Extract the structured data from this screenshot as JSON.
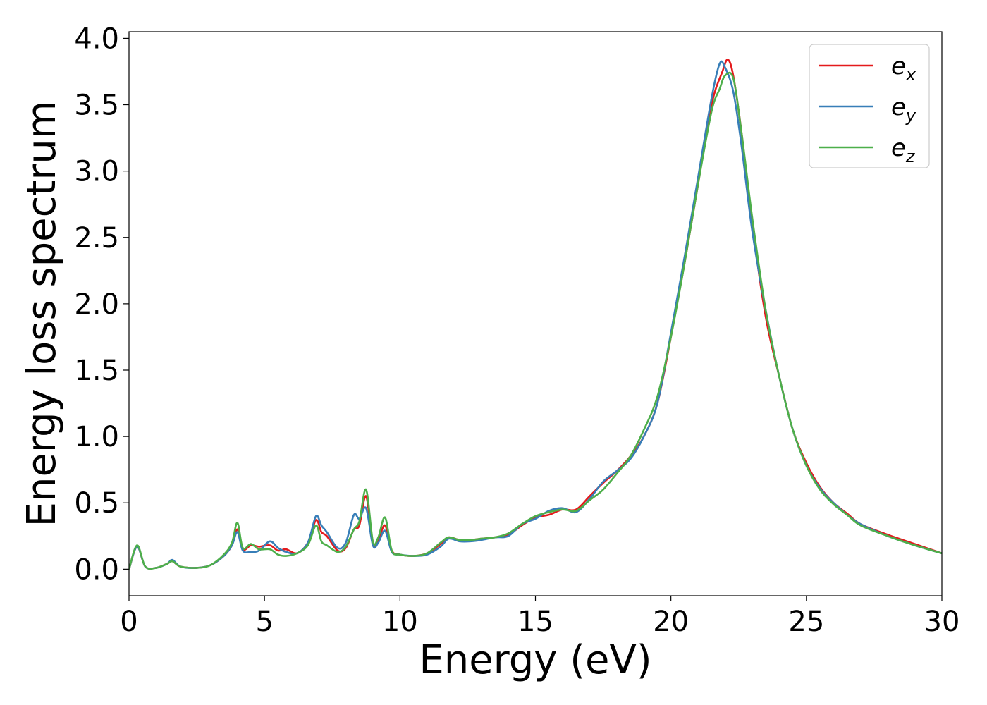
{
  "chart_data": {
    "type": "line",
    "xlabel": "Energy (eV)",
    "ylabel": "Energy loss spectrum",
    "xlim": [
      0,
      30
    ],
    "ylim": [
      -0.2,
      4.05
    ],
    "xticks": [
      0,
      5,
      10,
      15,
      20,
      25,
      30
    ],
    "xtick_labels": [
      "0",
      "5",
      "10",
      "15",
      "20",
      "25",
      "30"
    ],
    "yticks": [
      0.0,
      0.5,
      1.0,
      1.5,
      2.0,
      2.5,
      3.0,
      3.5,
      4.0
    ],
    "ytick_labels": [
      "0.0",
      "0.5",
      "1.0",
      "1.5",
      "2.0",
      "2.5",
      "3.0",
      "3.5",
      "4.0"
    ],
    "grid": false,
    "legend_position": "top-right",
    "series": [
      {
        "name": "e_x",
        "base": "e",
        "sub": "x",
        "color": "#e41a1c",
        "x": [
          0,
          0.3,
          0.6,
          1.0,
          1.4,
          1.6,
          1.9,
          2.5,
          3.0,
          3.5,
          3.8,
          4.0,
          4.2,
          4.5,
          4.8,
          5.2,
          5.5,
          5.8,
          6.2,
          6.6,
          6.9,
          7.1,
          7.3,
          7.7,
          8.0,
          8.3,
          8.5,
          8.75,
          9.0,
          9.2,
          9.45,
          9.7,
          10.0,
          10.5,
          11.0,
          11.5,
          11.8,
          12.2,
          12.6,
          13.0,
          13.5,
          14.0,
          14.5,
          15.0,
          15.5,
          16.0,
          16.5,
          17.0,
          17.5,
          18.0,
          18.5,
          19.0,
          19.5,
          20.0,
          20.5,
          21.0,
          21.5,
          21.9,
          22.1,
          22.3,
          22.6,
          23.0,
          23.5,
          24.0,
          24.5,
          25.0,
          25.5,
          26.0,
          26.5,
          27.0,
          28.0,
          29.0,
          30.0
        ],
        "y": [
          0.0,
          0.17,
          0.02,
          0.01,
          0.04,
          0.06,
          0.02,
          0.01,
          0.03,
          0.1,
          0.18,
          0.3,
          0.15,
          0.18,
          0.17,
          0.18,
          0.14,
          0.15,
          0.12,
          0.2,
          0.37,
          0.28,
          0.25,
          0.14,
          0.16,
          0.3,
          0.33,
          0.55,
          0.2,
          0.22,
          0.33,
          0.14,
          0.11,
          0.1,
          0.12,
          0.19,
          0.24,
          0.22,
          0.22,
          0.23,
          0.24,
          0.26,
          0.33,
          0.39,
          0.41,
          0.45,
          0.45,
          0.55,
          0.65,
          0.74,
          0.85,
          1.0,
          1.25,
          1.75,
          2.3,
          2.9,
          3.5,
          3.75,
          3.84,
          3.72,
          3.3,
          2.6,
          1.9,
          1.45,
          1.05,
          0.8,
          0.62,
          0.5,
          0.42,
          0.34,
          0.26,
          0.19,
          0.12
        ]
      },
      {
        "name": "e_y",
        "base": "e",
        "sub": "y",
        "color": "#377eb8",
        "x": [
          0,
          0.3,
          0.6,
          1.0,
          1.4,
          1.6,
          1.9,
          2.5,
          3.0,
          3.5,
          3.8,
          4.0,
          4.2,
          4.5,
          4.8,
          5.2,
          5.5,
          5.8,
          6.2,
          6.6,
          6.9,
          7.1,
          7.3,
          7.7,
          8.0,
          8.3,
          8.5,
          8.75,
          9.0,
          9.2,
          9.45,
          9.7,
          10.0,
          10.5,
          11.0,
          11.5,
          11.8,
          12.2,
          12.6,
          13.0,
          13.5,
          14.0,
          14.5,
          15.0,
          15.5,
          16.0,
          16.5,
          17.0,
          17.5,
          18.0,
          18.5,
          19.0,
          19.5,
          20.0,
          20.5,
          21.0,
          21.5,
          21.8,
          22.0,
          22.3,
          22.6,
          23.0,
          23.5,
          24.0,
          24.5,
          25.0,
          25.5,
          26.0,
          26.5,
          27.0,
          28.0,
          29.0,
          30.0
        ],
        "y": [
          0.0,
          0.17,
          0.02,
          0.01,
          0.04,
          0.07,
          0.02,
          0.01,
          0.03,
          0.1,
          0.18,
          0.28,
          0.14,
          0.13,
          0.14,
          0.21,
          0.16,
          0.13,
          0.12,
          0.2,
          0.4,
          0.33,
          0.28,
          0.16,
          0.2,
          0.41,
          0.38,
          0.46,
          0.18,
          0.2,
          0.29,
          0.13,
          0.11,
          0.1,
          0.11,
          0.17,
          0.23,
          0.21,
          0.21,
          0.22,
          0.24,
          0.25,
          0.34,
          0.38,
          0.44,
          0.46,
          0.43,
          0.53,
          0.66,
          0.74,
          0.83,
          1.0,
          1.25,
          1.78,
          2.35,
          2.95,
          3.55,
          3.81,
          3.78,
          3.6,
          3.2,
          2.55,
          1.95,
          1.45,
          1.05,
          0.78,
          0.61,
          0.5,
          0.41,
          0.34,
          0.25,
          0.18,
          0.12
        ]
      },
      {
        "name": "e_z",
        "base": "e",
        "sub": "z",
        "color": "#4daf4a",
        "x": [
          0,
          0.3,
          0.6,
          1.0,
          1.4,
          1.6,
          1.9,
          2.5,
          3.0,
          3.5,
          3.8,
          4.0,
          4.2,
          4.5,
          4.8,
          5.2,
          5.5,
          5.8,
          6.2,
          6.6,
          6.9,
          7.1,
          7.3,
          7.7,
          8.0,
          8.3,
          8.5,
          8.75,
          9.0,
          9.2,
          9.45,
          9.7,
          10.0,
          10.5,
          11.0,
          11.5,
          11.8,
          12.2,
          12.6,
          13.0,
          13.5,
          14.0,
          14.5,
          15.0,
          15.5,
          16.0,
          16.5,
          17.0,
          17.5,
          18.0,
          18.5,
          19.0,
          19.5,
          20.0,
          20.5,
          21.0,
          21.5,
          21.8,
          22.0,
          22.3,
          22.6,
          23.0,
          23.5,
          24.0,
          24.5,
          25.0,
          25.5,
          26.0,
          26.5,
          27.0,
          28.0,
          29.0,
          30.0
        ],
        "y": [
          0.0,
          0.18,
          0.02,
          0.01,
          0.04,
          0.06,
          0.02,
          0.01,
          0.03,
          0.11,
          0.2,
          0.35,
          0.16,
          0.19,
          0.15,
          0.15,
          0.11,
          0.1,
          0.12,
          0.18,
          0.33,
          0.21,
          0.18,
          0.13,
          0.17,
          0.3,
          0.36,
          0.6,
          0.21,
          0.24,
          0.39,
          0.14,
          0.11,
          0.1,
          0.12,
          0.2,
          0.24,
          0.22,
          0.22,
          0.23,
          0.24,
          0.27,
          0.34,
          0.4,
          0.43,
          0.45,
          0.44,
          0.52,
          0.6,
          0.72,
          0.85,
          1.05,
          1.3,
          1.75,
          2.3,
          2.9,
          3.45,
          3.62,
          3.72,
          3.7,
          3.3,
          2.65,
          1.95,
          1.45,
          1.05,
          0.78,
          0.6,
          0.49,
          0.41,
          0.33,
          0.25,
          0.18,
          0.12
        ]
      }
    ]
  }
}
